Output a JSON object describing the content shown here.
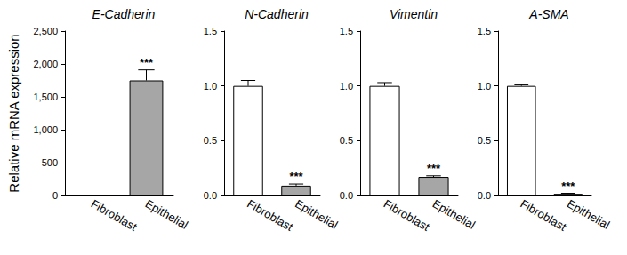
{
  "chart_data": [
    {
      "type": "bar",
      "title": "E-Cadherin",
      "ylabel": "Relative mRNA expression",
      "categories": [
        "Fibroblast",
        "Epithelial"
      ],
      "values": [
        1,
        1750
      ],
      "errors": [
        0.1,
        160
      ],
      "colors": [
        "#ffffff",
        "#a6a6a6"
      ],
      "ylim": [
        0,
        2500
      ],
      "yticks": [
        0,
        500,
        {
          "value": 1000,
          "label": "1,000"
        },
        {
          "value": 1500,
          "label": "1,500"
        },
        {
          "value": 2000,
          "label": "2,000"
        },
        {
          "value": 2500,
          "label": "2,500"
        }
      ],
      "annotations": [
        {
          "category": "Epithelial",
          "text": "***"
        }
      ]
    },
    {
      "type": "bar",
      "title": "N-Cadherin",
      "categories": [
        "Fibroblast",
        "Epithelial"
      ],
      "values": [
        1.0,
        0.09
      ],
      "errors": [
        0.05,
        0.015
      ],
      "colors": [
        "#ffffff",
        "#a6a6a6"
      ],
      "ylim": [
        0,
        1.5
      ],
      "yticks": [
        {
          "value": 0,
          "label": "0.0"
        },
        0.5,
        {
          "value": 1,
          "label": "1.0"
        },
        1.5
      ],
      "annotations": [
        {
          "category": "Epithelial",
          "text": "***"
        }
      ]
    },
    {
      "type": "bar",
      "title": "Vimentin",
      "categories": [
        "Fibroblast",
        "Epithelial"
      ],
      "values": [
        1.0,
        0.17
      ],
      "errors": [
        0.03,
        0.01
      ],
      "colors": [
        "#ffffff",
        "#a6a6a6"
      ],
      "ylim": [
        0,
        1.5
      ],
      "yticks": [
        {
          "value": 0,
          "label": "0.0"
        },
        0.5,
        {
          "value": 1,
          "label": "1.0"
        },
        1.5
      ],
      "annotations": [
        {
          "category": "Epithelial",
          "text": "***"
        }
      ]
    },
    {
      "type": "bar",
      "title": "A-SMA",
      "categories": [
        "Fibroblast",
        "Epithelial"
      ],
      "values": [
        1.0,
        0.015
      ],
      "errors": [
        0.01,
        0.005
      ],
      "colors": [
        "#ffffff",
        "#a6a6a6"
      ],
      "ylim": [
        0,
        1.5
      ],
      "yticks": [
        {
          "value": 0,
          "label": "0.0"
        },
        0.5,
        {
          "value": 1,
          "label": "1.0"
        },
        1.5
      ],
      "annotations": [
        {
          "category": "Epithelial",
          "text": "***"
        }
      ]
    }
  ]
}
